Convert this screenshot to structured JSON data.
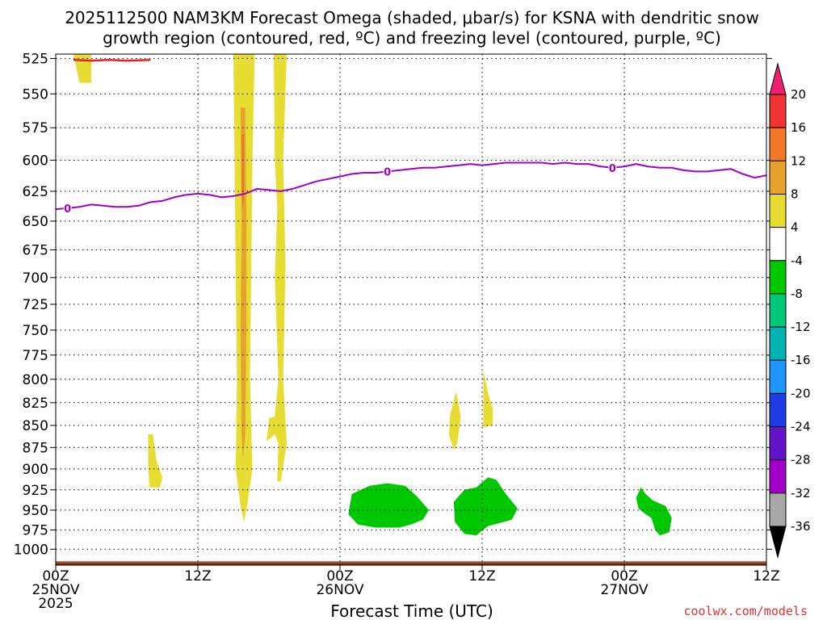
{
  "chart_data": {
    "type": "heatmap",
    "title_line1": "2025112500 NAM3KM Forecast Omega (shaded, μbar/s) for KSNA with dendritic snow",
    "title_line2": "growth region (contoured, red, ºC) and freezing level (contoured, purple, ºC)",
    "xlabel": "Forecast Time (UTC)",
    "ylabel": "",
    "x_range_hours": [
      0,
      60
    ],
    "y_range_hPa": [
      522,
      1020
    ],
    "y_scale": "log-pressure",
    "grid": true,
    "y_ticks": [
      525,
      550,
      575,
      600,
      625,
      650,
      675,
      700,
      725,
      750,
      775,
      800,
      825,
      850,
      875,
      900,
      925,
      950,
      975,
      1000
    ],
    "x_ticks": [
      {
        "hour": 0,
        "lines": [
          "00Z",
          "25NOV",
          "2025"
        ]
      },
      {
        "hour": 12,
        "lines": [
          "12Z"
        ]
      },
      {
        "hour": 24,
        "lines": [
          "00Z",
          "26NOV"
        ]
      },
      {
        "hour": 36,
        "lines": [
          "12Z"
        ]
      },
      {
        "hour": 48,
        "lines": [
          "00Z",
          "27NOV"
        ]
      },
      {
        "hour": 60,
        "lines": [
          "12Z"
        ]
      }
    ],
    "freezing_level": {
      "color": "#a000c8",
      "label": "0",
      "label_hours": [
        1,
        28,
        47
      ],
      "points": [
        [
          0,
          640
        ],
        [
          1,
          639
        ],
        [
          2,
          638
        ],
        [
          3,
          636
        ],
        [
          4,
          637
        ],
        [
          5,
          638
        ],
        [
          6,
          638
        ],
        [
          7,
          637
        ],
        [
          8,
          634
        ],
        [
          9,
          633
        ],
        [
          10,
          630
        ],
        [
          11,
          628
        ],
        [
          12,
          627
        ],
        [
          13,
          628
        ],
        [
          14,
          630
        ],
        [
          15,
          629
        ],
        [
          16,
          627
        ],
        [
          17,
          623
        ],
        [
          18,
          624
        ],
        [
          19,
          625
        ],
        [
          20,
          623
        ],
        [
          21,
          620
        ],
        [
          22,
          617
        ],
        [
          23,
          615
        ],
        [
          24,
          613
        ],
        [
          25,
          611
        ],
        [
          26,
          610
        ],
        [
          27,
          610
        ],
        [
          28,
          609
        ],
        [
          29,
          608
        ],
        [
          30,
          607
        ],
        [
          31,
          606
        ],
        [
          32,
          606
        ],
        [
          33,
          605
        ],
        [
          34,
          604
        ],
        [
          35,
          603
        ],
        [
          36,
          604
        ],
        [
          37,
          603
        ],
        [
          38,
          602
        ],
        [
          39,
          602
        ],
        [
          40,
          602
        ],
        [
          41,
          602
        ],
        [
          42,
          603
        ],
        [
          43,
          602
        ],
        [
          44,
          603
        ],
        [
          45,
          603
        ],
        [
          46,
          605
        ],
        [
          47,
          606
        ],
        [
          48,
          605
        ],
        [
          49,
          603
        ],
        [
          50,
          605
        ],
        [
          51,
          606
        ],
        [
          52,
          606
        ],
        [
          53,
          608
        ],
        [
          54,
          609
        ],
        [
          55,
          609
        ],
        [
          56,
          608
        ],
        [
          57,
          607
        ],
        [
          58,
          611
        ],
        [
          59,
          614
        ],
        [
          60,
          612
        ]
      ]
    },
    "dgz_contour": {
      "color": "#e82020",
      "points": [
        [
          1.5,
          526
        ],
        [
          3,
          526.5
        ],
        [
          4.5,
          526
        ],
        [
          6,
          526.5
        ],
        [
          8,
          526
        ]
      ]
    },
    "ground": {
      "color": "#a0522d",
      "top_hPa": 1016,
      "bottom_hPa": 1022
    },
    "omega_regions": [
      {
        "value": 4,
        "color": "#e6dc32",
        "polygon": [
          [
            1.5,
            522
          ],
          [
            3,
            522
          ],
          [
            3,
            542
          ],
          [
            2,
            542
          ]
        ]
      },
      {
        "value": 4,
        "color": "#e6dc32",
        "polygon": [
          [
            15,
            522
          ],
          [
            16.8,
            522
          ],
          [
            16.6,
            600
          ],
          [
            16.5,
            700
          ],
          [
            16.4,
            800
          ],
          [
            16.6,
            900
          ],
          [
            16.2,
            940
          ],
          [
            15.9,
            965
          ],
          [
            15.6,
            945
          ],
          [
            15.2,
            900
          ],
          [
            15.3,
            800
          ],
          [
            15.2,
            700
          ],
          [
            15.1,
            600
          ]
        ]
      },
      {
        "value": 8,
        "color": "#e6a32c",
        "polygon": [
          [
            15.6,
            560
          ],
          [
            16.0,
            560
          ],
          [
            16.1,
            650
          ],
          [
            16.1,
            750
          ],
          [
            16.0,
            860
          ],
          [
            15.8,
            890
          ],
          [
            15.7,
            860
          ],
          [
            15.6,
            750
          ],
          [
            15.7,
            650
          ]
        ]
      },
      {
        "value": 12,
        "color": "#e67a2a",
        "polygon": [
          [
            15.7,
            580
          ],
          [
            15.9,
            580
          ],
          [
            15.9,
            630
          ],
          [
            15.8,
            640
          ],
          [
            15.7,
            630
          ]
        ]
      },
      {
        "value": 4,
        "color": "#e6dc32",
        "polygon": [
          [
            18.4,
            522
          ],
          [
            19.5,
            522
          ],
          [
            19.2,
            600
          ],
          [
            19.4,
            690
          ],
          [
            19.2,
            800
          ],
          [
            19.5,
            870
          ],
          [
            19.0,
            915
          ],
          [
            18.7,
            915
          ],
          [
            18.8,
            870
          ],
          [
            18.5,
            860
          ],
          [
            17.8,
            868
          ],
          [
            18.0,
            842
          ],
          [
            18.5,
            840
          ],
          [
            18.8,
            800
          ],
          [
            18.5,
            700
          ],
          [
            18.7,
            640
          ],
          [
            18.5,
            600
          ]
        ]
      },
      {
        "value": 4,
        "color": "#e6dc32",
        "polygon": [
          [
            7.8,
            860
          ],
          [
            8.2,
            860
          ],
          [
            8.5,
            890
          ],
          [
            9.0,
            910
          ],
          [
            8.8,
            922
          ],
          [
            7.9,
            922
          ],
          [
            7.8,
            890
          ]
        ]
      },
      {
        "value": 4,
        "color": "#e6dc32",
        "polygon": [
          [
            33.8,
            813
          ],
          [
            34.2,
            840
          ],
          [
            33.9,
            870
          ],
          [
            33.6,
            878
          ],
          [
            33.2,
            860
          ],
          [
            33.3,
            838
          ]
        ]
      },
      {
        "value": 4,
        "color": "#e6dc32",
        "polygon": [
          [
            36.1,
            790
          ],
          [
            36.5,
            815
          ],
          [
            36.9,
            832
          ],
          [
            36.9,
            850
          ],
          [
            36.1,
            852
          ]
        ]
      },
      {
        "value": -4,
        "color": "#00c800",
        "polygon": [
          [
            25,
            930
          ],
          [
            26.5,
            920
          ],
          [
            28,
            917
          ],
          [
            29.5,
            920
          ],
          [
            30.5,
            933
          ],
          [
            31.5,
            950
          ],
          [
            31.0,
            962
          ],
          [
            30.0,
            968
          ],
          [
            29,
            972
          ],
          [
            27,
            972
          ],
          [
            25.5,
            968
          ],
          [
            24.7,
            955
          ]
        ]
      },
      {
        "value": -4,
        "color": "#00c800",
        "polygon": [
          [
            34.5,
            925
          ],
          [
            35.5,
            922
          ],
          [
            36.5,
            910
          ],
          [
            37.2,
            913
          ],
          [
            38,
            930
          ],
          [
            39,
            948
          ],
          [
            38.5,
            962
          ],
          [
            37.5,
            966
          ],
          [
            36.5,
            970
          ],
          [
            35.5,
            982
          ],
          [
            34.5,
            980
          ],
          [
            33.7,
            965
          ],
          [
            33.6,
            940
          ]
        ]
      },
      {
        "value": -4,
        "color": "#00c800",
        "polygon": [
          [
            49.4,
            922
          ],
          [
            49.8,
            930
          ],
          [
            50.4,
            938
          ],
          [
            51.5,
            945
          ],
          [
            52,
            960
          ],
          [
            51.8,
            978
          ],
          [
            51.0,
            982
          ],
          [
            50.6,
            975
          ],
          [
            50.3,
            960
          ],
          [
            49.8,
            955
          ],
          [
            49.2,
            948
          ],
          [
            49.0,
            935
          ]
        ]
      }
    ],
    "colorbar": {
      "labels": [
        "20",
        "16",
        "12",
        "8",
        "4",
        "-4",
        "-8",
        "-12",
        "-16",
        "-20",
        "-24",
        "-28",
        "-32",
        "-36"
      ],
      "colors": [
        "#f01e6e",
        "#f03232",
        "#f07828",
        "#e6a32c",
        "#e6dc32",
        "#ffffff",
        "#00c800",
        "#00c87a",
        "#00b4b4",
        "#1e96ff",
        "#1e3ce6",
        "#6414c8",
        "#a000c8",
        "#a8a8a8",
        "#000000"
      ]
    },
    "credit": "coolwx.com/models"
  }
}
